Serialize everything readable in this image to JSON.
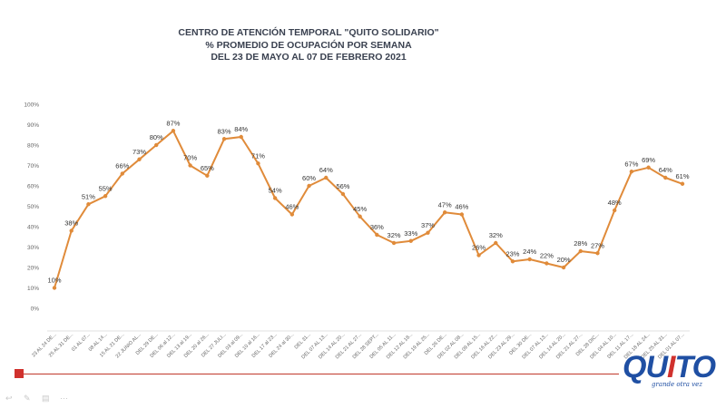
{
  "chart_data": {
    "type": "line",
    "title_lines": [
      "CENTRO DE ATENCIÓN TEMPORAL \"QUITO SOLIDARIO\"",
      "%  PROMEDIO DE OCUPACIÓN POR SEMANA",
      "DEL 23 DE MAYO AL 07 DE FEBRERO 2021"
    ],
    "ylim": [
      0,
      100
    ],
    "yticks": [
      "0%",
      "10%",
      "20%",
      "30%",
      "40%",
      "50%",
      "60%",
      "70%",
      "80%",
      "90%",
      "100%"
    ],
    "series_color": "#e08b3a",
    "grid": false,
    "categories": [
      "23 AL 24 DE...",
      "25 AL 31 DE...",
      "01 AL 07...",
      "08 AL 14...",
      "15 AL 21 DE...",
      "22 JUNIO AL...",
      "DEL 29 DE...",
      "DEL 06 al 12...",
      "DEL 13 al 19...",
      "DEL 20 al 26...",
      "DEL 27 JULI...",
      "DEL 03 al 09...",
      "DEL 10 al 16...",
      "DEL 17 al 23...",
      "DEL 24 al 30...",
      "DEL 31...",
      "DEL 07 AL 13...",
      "DEL 14 AL 20...",
      "DEL 21 AL 27...",
      "DEL 28 SEPT...",
      "DEL 05 AL 11...",
      "DEL 12 AL 18...",
      "DEL 19 AL 25...",
      "DEL 26 DE...",
      "DEL 02 AL 08...",
      "DEL 09 AL 15...",
      "DEL 16 AL 22...",
      "DEL 23 AL 29...",
      "DEL 30 DE...",
      "DEL 07 AL 13...",
      "DEL 14 AL 20...",
      "DEL 21 AL 27...",
      "DEL 28 DIC...",
      "DEL 04 AL 10...",
      "DEL 11 AL 17...",
      "DEL 18 AL 24...",
      "DEL 25 AL 31...",
      "DEL 01 AL 07..."
    ],
    "values": [
      10,
      38,
      51,
      55,
      66,
      73,
      80,
      87,
      70,
      65,
      83,
      84,
      71,
      54,
      46,
      60,
      64,
      56,
      45,
      36,
      32,
      33,
      37,
      47,
      46,
      26,
      32,
      23,
      24,
      22,
      20,
      28,
      27,
      48,
      67,
      69,
      64,
      61
    ],
    "data_labels": [
      "10%",
      "38%",
      "51%",
      "55%",
      "66%",
      "73%",
      "80%",
      "87%",
      "70%",
      "65%",
      "83%",
      "84%",
      "71%",
      "54%",
      "46%",
      "60%",
      "64%",
      "56%",
      "45%",
      "36%",
      "32%",
      "33%",
      "37%",
      "47%",
      "46%",
      "26%",
      "32%",
      "23%",
      "24%",
      "22%",
      "20%",
      "28%",
      "27%",
      "48%",
      "67%",
      "69%",
      "64%",
      "61%"
    ]
  },
  "logo": {
    "text_a": "QU",
    "text_o": "I",
    "text_b": "TO",
    "tagline": "grande otra vez"
  },
  "colors": {
    "accent_red": "#d0312d",
    "logo_blue": "#1f4fa3"
  }
}
